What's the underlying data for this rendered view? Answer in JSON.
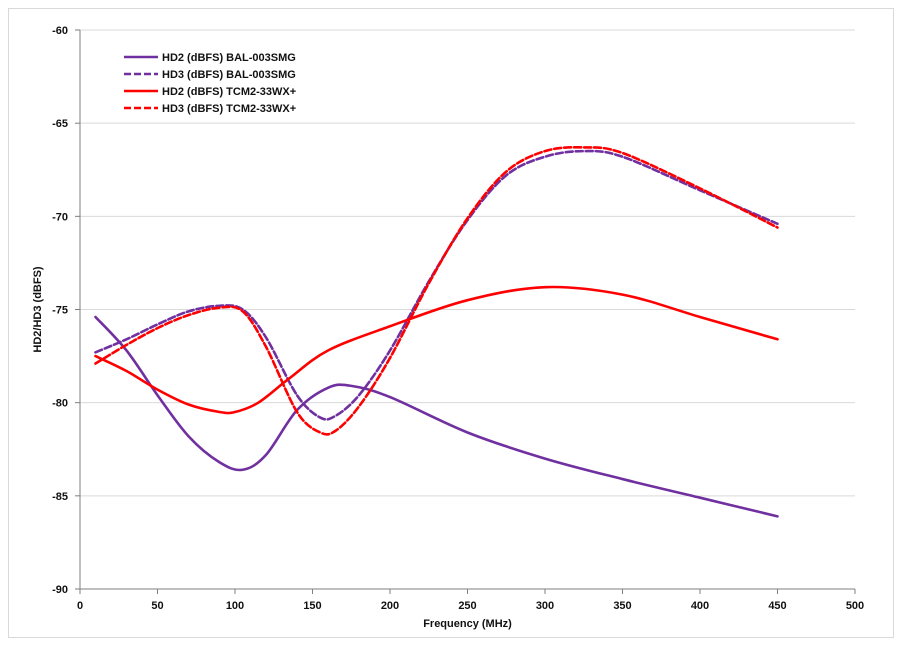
{
  "chart_data": {
    "type": "line",
    "title": "",
    "xlabel": "Frequency (MHz)",
    "ylabel": "HD2/HD3 (dBFS)",
    "xlim": [
      0,
      500
    ],
    "ylim": [
      -90,
      -60
    ],
    "xticks": [
      0,
      50,
      100,
      150,
      200,
      250,
      300,
      350,
      400,
      450,
      500
    ],
    "yticks": [
      -90,
      -85,
      -80,
      -75,
      -70,
      -65,
      -60
    ],
    "grid": "horizontal",
    "legend_position": "top-left",
    "series": [
      {
        "name": "HD2 (dBFS) BAL-003SMG",
        "color": "#7030a0",
        "dash": "solid",
        "x": [
          10,
          30,
          50,
          70,
          90,
          105,
          120,
          140,
          160,
          175,
          200,
          250,
          300,
          350,
          400,
          450
        ],
        "y": [
          -75.4,
          -77.2,
          -79.6,
          -81.8,
          -83.2,
          -83.6,
          -82.8,
          -80.4,
          -79.2,
          -79.1,
          -79.7,
          -81.6,
          -83.0,
          -84.1,
          -85.1,
          -86.1
        ]
      },
      {
        "name": "HD3 (dBFS) BAL-003SMG",
        "color": "#7030a0",
        "dash": "dashed",
        "x": [
          10,
          30,
          50,
          70,
          90,
          105,
          120,
          140,
          155,
          165,
          180,
          200,
          225,
          250,
          275,
          300,
          325,
          350,
          400,
          450
        ],
        "y": [
          -77.3,
          -76.6,
          -75.8,
          -75.1,
          -74.8,
          -75.0,
          -76.5,
          -79.6,
          -80.8,
          -80.7,
          -79.6,
          -77.2,
          -73.5,
          -70.2,
          -67.8,
          -66.8,
          -66.5,
          -66.8,
          -68.6,
          -70.4
        ]
      },
      {
        "name": "HD2 (dBFS) TCM2-33WX+",
        "color": "#ff0000",
        "dash": "solid",
        "x": [
          10,
          30,
          50,
          70,
          90,
          100,
          115,
          135,
          160,
          200,
          250,
          300,
          350,
          400,
          450
        ],
        "y": [
          -77.5,
          -78.3,
          -79.3,
          -80.1,
          -80.5,
          -80.5,
          -80.0,
          -78.7,
          -77.2,
          -75.9,
          -74.5,
          -73.8,
          -74.2,
          -75.4,
          -76.6
        ]
      },
      {
        "name": "HD3 (dBFS) TCM2-33WX+",
        "color": "#ff0000",
        "dash": "dashed",
        "x": [
          10,
          30,
          50,
          70,
          90,
          105,
          120,
          140,
          155,
          165,
          180,
          200,
          225,
          250,
          275,
          300,
          325,
          350,
          400,
          450
        ],
        "y": [
          -77.9,
          -76.9,
          -76.0,
          -75.3,
          -74.9,
          -75.1,
          -77.0,
          -80.5,
          -81.6,
          -81.5,
          -80.2,
          -77.6,
          -73.6,
          -70.1,
          -67.6,
          -66.5,
          -66.3,
          -66.6,
          -68.5,
          -70.6
        ]
      }
    ]
  }
}
